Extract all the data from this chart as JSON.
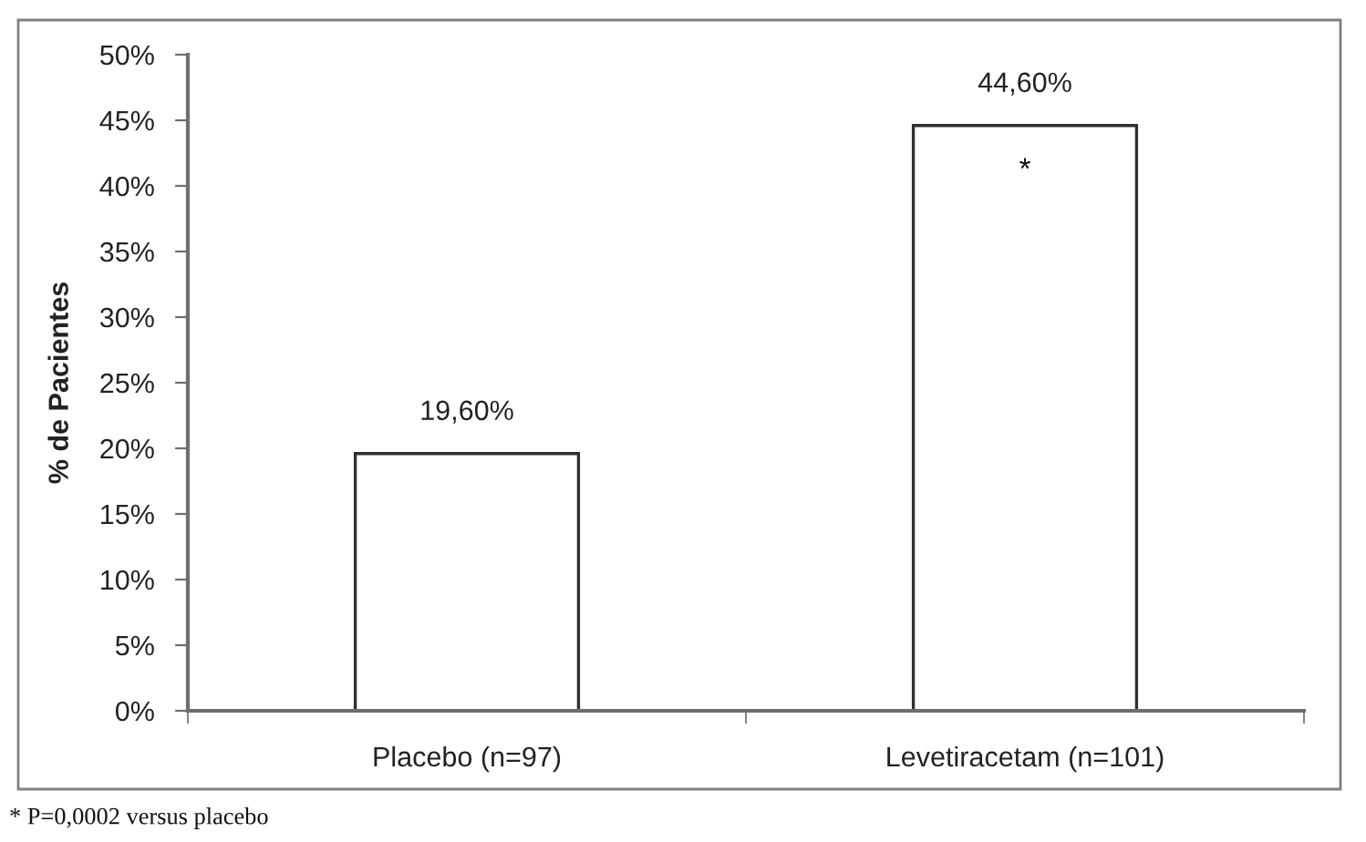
{
  "chart_data": {
    "type": "bar",
    "categories": [
      "Placebo (n=97)",
      "Levetiracetam (n=101)"
    ],
    "values": [
      19.6,
      44.6
    ],
    "color": "#ffffff",
    "value_labels": [
      "19,60%",
      "44,60%"
    ],
    "ylabel": "% de Pacientes",
    "ylim": [
      0,
      50
    ],
    "yticks": [
      {
        "value": 0,
        "label": "0%"
      },
      {
        "value": 5,
        "label": "5%"
      },
      {
        "value": 10,
        "label": "10%"
      },
      {
        "value": 15,
        "label": "15%"
      },
      {
        "value": 20,
        "label": "20%"
      },
      {
        "value": 25,
        "label": "25%"
      },
      {
        "value": 30,
        "label": "30%"
      },
      {
        "value": 35,
        "label": "35%"
      },
      {
        "value": 40,
        "label": "40%"
      },
      {
        "value": 45,
        "label": "45%"
      },
      {
        "value": 50,
        "label": "50%"
      }
    ],
    "grid": false,
    "annotations": [
      {
        "text": "*",
        "x": "Levetiracetam (n=101)",
        "y": 44.6
      },
      "* P=0,0002 versus placebo"
    ]
  }
}
